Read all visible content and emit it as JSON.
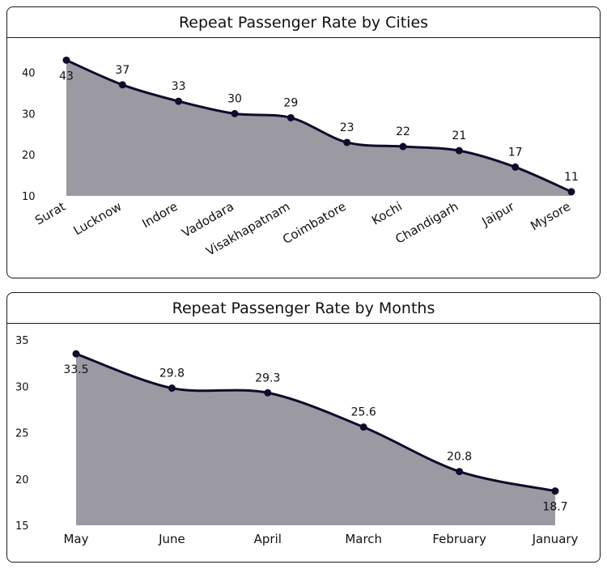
{
  "charts": [
    {
      "id": "cities",
      "chart_data": {
        "type": "area",
        "title": "Repeat Passenger Rate by Cities",
        "categories": [
          "Surat",
          "Lucknow",
          "Indore",
          "Vadodara",
          "Visakhapatnam",
          "Coimbatore",
          "Kochi",
          "Chandigarh",
          "Jaipur",
          "Mysore"
        ],
        "series": [
          {
            "values": [
              43,
              37,
              33,
              30,
              29,
              23,
              22,
              21,
              17,
              11
            ]
          }
        ],
        "yticks": [
          10,
          20,
          30,
          40
        ],
        "ylim": [
          10,
          47
        ],
        "grid": false,
        "xlabel": "",
        "ylabel": "",
        "fill_color": "#9b9aa3",
        "line_color": "#0d0d2b"
      }
    },
    {
      "id": "months",
      "chart_data": {
        "type": "area",
        "title": "Repeat Passenger Rate by Months",
        "categories": [
          "May",
          "June",
          "April",
          "March",
          "February",
          "January"
        ],
        "series": [
          {
            "values": [
              33.5,
              29.8,
              29.3,
              25.6,
              20.8,
              18.7
            ]
          }
        ],
        "yticks": [
          15,
          20,
          25,
          30,
          35
        ],
        "ylim": [
          15,
          35
        ],
        "grid": false,
        "xlabel": "",
        "ylabel": "",
        "fill_color": "#9b9aa3",
        "line_color": "#0d0d2b"
      }
    }
  ]
}
